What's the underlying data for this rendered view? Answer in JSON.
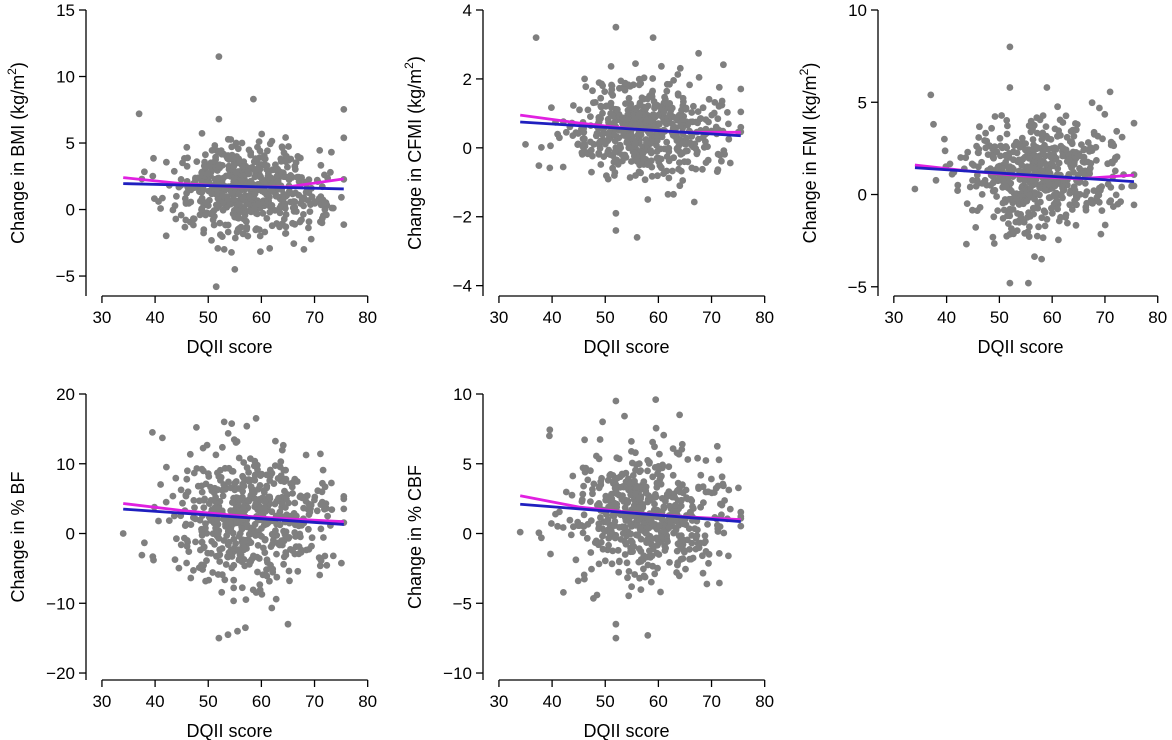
{
  "figure": {
    "colors": {
      "points": "#7f7f7f",
      "fit_linear": "#1f1fbf",
      "fit_smooth": "#e020e0",
      "axes": "#000000"
    }
  },
  "chart_data": [
    {
      "id": "bmi",
      "type": "scatter",
      "xlabel": "DQII score",
      "ylabel_main": "Change in BMI (kg/m",
      "ylabel_sup": "2",
      "ylabel_end": ")",
      "xlim": [
        27,
        81
      ],
      "ylim": [
        -6.5,
        15
      ],
      "xticks": [
        30,
        40,
        50,
        60,
        70,
        80
      ],
      "yticks": [
        -5,
        0,
        5,
        10,
        15
      ],
      "n_points": 560,
      "x_center": 57,
      "x_spread": 7.5,
      "y_center": 1.6,
      "y_spread": 1.7,
      "outliers": [
        [
          52,
          11.5
        ],
        [
          58.5,
          8.3
        ],
        [
          37,
          7.2
        ],
        [
          52,
          6.8
        ],
        [
          51.5,
          -5.8
        ],
        [
          55,
          -4.5
        ],
        [
          53,
          -3
        ],
        [
          68,
          -3
        ]
      ],
      "fit_linear": {
        "x": [
          34,
          75.5
        ],
        "y": [
          1.95,
          1.55
        ]
      },
      "fit_smooth": {
        "x": [
          34,
          45,
          55,
          65,
          75.5
        ],
        "y": [
          2.4,
          1.95,
          1.7,
          1.7,
          2.3
        ]
      }
    },
    {
      "id": "cfmi",
      "type": "scatter",
      "xlabel": "DQII score",
      "ylabel_main": "Change in CFMI (kg/m",
      "ylabel_sup": "2",
      "ylabel_end": ")",
      "xlim": [
        27,
        81
      ],
      "ylim": [
        -4.3,
        4
      ],
      "xticks": [
        30,
        40,
        50,
        60,
        70,
        80
      ],
      "yticks": [
        -4,
        -2,
        0,
        2,
        4
      ],
      "n_points": 560,
      "x_center": 57,
      "x_spread": 7.5,
      "y_center": 0.55,
      "y_spread": 0.65,
      "outliers": [
        [
          52,
          3.5
        ],
        [
          37,
          3.2
        ],
        [
          59,
          3.2
        ],
        [
          52,
          -1.9
        ],
        [
          52,
          -2.4
        ],
        [
          56,
          -2.6
        ],
        [
          58,
          -1.5
        ],
        [
          35,
          0.1
        ]
      ],
      "fit_linear": {
        "x": [
          34,
          75.5
        ],
        "y": [
          0.75,
          0.35
        ]
      },
      "fit_smooth": {
        "x": [
          34,
          45,
          55,
          65,
          75.5
        ],
        "y": [
          0.95,
          0.72,
          0.55,
          0.45,
          0.45
        ]
      }
    },
    {
      "id": "fmi",
      "type": "scatter",
      "xlabel": "DQII score",
      "ylabel_main": "Change in FMI (kg/m",
      "ylabel_sup": "2",
      "ylabel_end": ")",
      "xlim": [
        27,
        81
      ],
      "ylim": [
        -5.5,
        10
      ],
      "xticks": [
        30,
        40,
        50,
        60,
        70,
        80
      ],
      "yticks": [
        -5,
        0,
        5,
        10
      ],
      "n_points": 560,
      "x_center": 57,
      "x_spread": 7.5,
      "y_center": 1.0,
      "y_spread": 1.4,
      "outliers": [
        [
          52,
          8.0
        ],
        [
          59,
          5.8
        ],
        [
          37,
          5.4
        ],
        [
          52,
          5.8
        ],
        [
          52,
          -4.8
        ],
        [
          55.5,
          -4.8
        ],
        [
          58,
          -3.5
        ],
        [
          34,
          0.3
        ]
      ],
      "fit_linear": {
        "x": [
          34,
          75.5
        ],
        "y": [
          1.45,
          0.7
        ]
      },
      "fit_smooth": {
        "x": [
          34,
          45,
          55,
          65,
          75.5
        ],
        "y": [
          1.6,
          1.25,
          1.0,
          0.85,
          1.05
        ]
      }
    },
    {
      "id": "pbf",
      "type": "scatter",
      "xlabel": "DQII score",
      "ylabel_main": "Change in % BF",
      "ylabel_sup": "",
      "ylabel_end": "",
      "xlim": [
        27,
        81
      ],
      "ylim": [
        -21,
        20
      ],
      "xticks": [
        30,
        40,
        50,
        60,
        70,
        80
      ],
      "yticks": [
        -20,
        -10,
        0,
        10,
        20
      ],
      "n_points": 560,
      "x_center": 57,
      "x_spread": 7.5,
      "y_center": 2.3,
      "y_spread": 4.6,
      "outliers": [
        [
          39.5,
          14.5
        ],
        [
          59,
          16.5
        ],
        [
          53,
          16
        ],
        [
          52,
          -15
        ],
        [
          55.5,
          -14
        ],
        [
          57,
          -13.5
        ],
        [
          65,
          -13
        ],
        [
          34,
          0
        ]
      ],
      "fit_linear": {
        "x": [
          34,
          75.5
        ],
        "y": [
          3.5,
          1.3
        ]
      },
      "fit_smooth": {
        "x": [
          34,
          45,
          55,
          65,
          75.5
        ],
        "y": [
          4.3,
          3.3,
          2.6,
          2.1,
          1.7
        ]
      }
    },
    {
      "id": "pcbf",
      "type": "scatter",
      "xlabel": "DQII score",
      "ylabel_main": "Change in % CBF",
      "ylabel_sup": "",
      "ylabel_end": "",
      "xlim": [
        27,
        81
      ],
      "ylim": [
        -10.5,
        10
      ],
      "xticks": [
        30,
        40,
        50,
        60,
        70,
        80
      ],
      "yticks": [
        -10,
        -5,
        0,
        5,
        10
      ],
      "n_points": 560,
      "x_center": 57,
      "x_spread": 7.5,
      "y_center": 1.4,
      "y_spread": 2.3,
      "outliers": [
        [
          52,
          9.5
        ],
        [
          59.5,
          9.6
        ],
        [
          39.5,
          7.0
        ],
        [
          64,
          8.5
        ],
        [
          52,
          -6.5
        ],
        [
          58,
          -7.3
        ],
        [
          52,
          -7.5
        ],
        [
          34,
          0.1
        ]
      ],
      "fit_linear": {
        "x": [
          34,
          75.5
        ],
        "y": [
          2.1,
          0.85
        ]
      },
      "fit_smooth": {
        "x": [
          34,
          45,
          55,
          65,
          75.5
        ],
        "y": [
          2.7,
          1.9,
          1.5,
          1.2,
          1.0
        ]
      }
    }
  ]
}
